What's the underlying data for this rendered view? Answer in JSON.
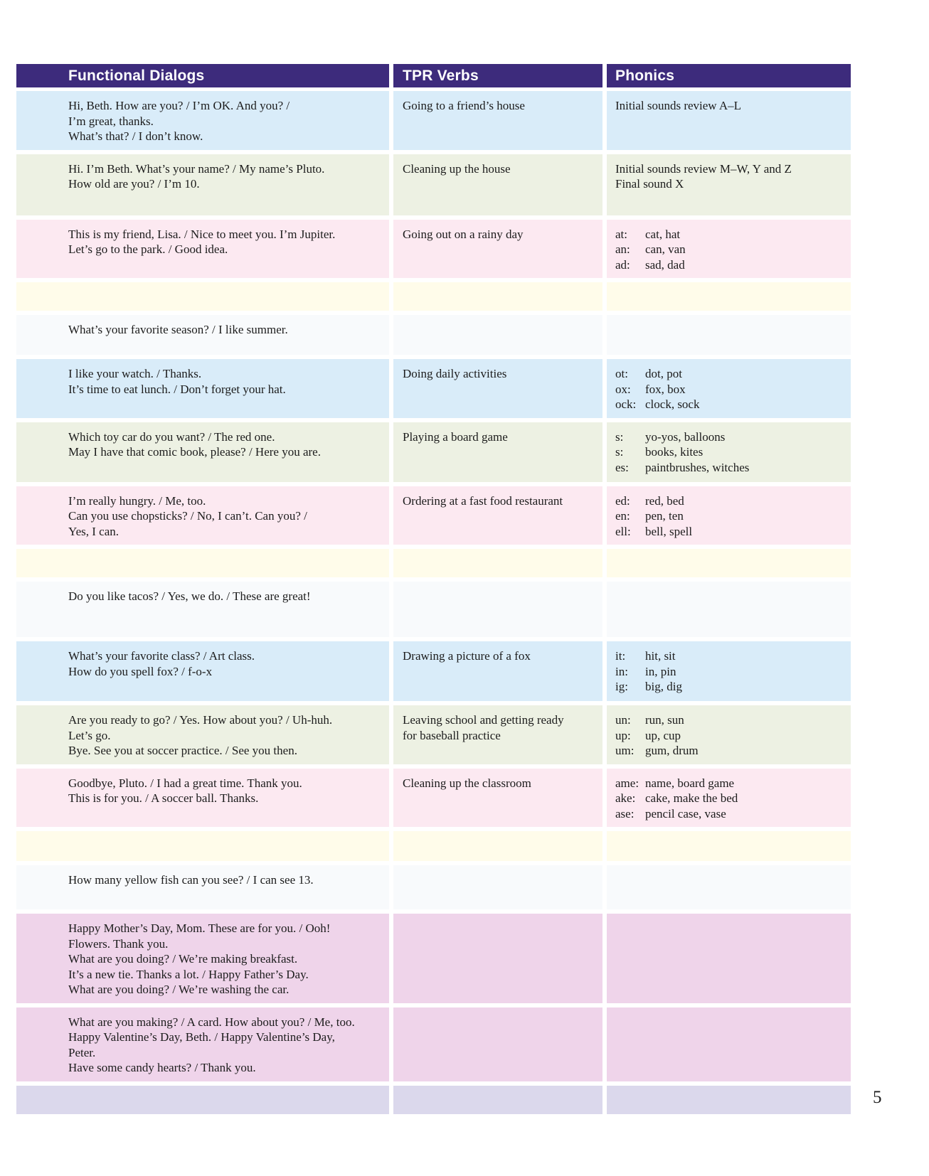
{
  "page": {
    "number": "5"
  },
  "colors": {
    "header_bg": "#3d2b7c",
    "header_text": "#ffffff",
    "body_text": "#1c1c1c",
    "blue": "#d9ecf9",
    "green": "#edf1e3",
    "pink": "#fce9f1",
    "yellow": "#fffcea",
    "pale": "#f8fafc",
    "purple": "#efd4ea",
    "lavender": "#dbd8ec"
  },
  "table": {
    "columns": [
      {
        "label": "Functional Dialogs"
      },
      {
        "label": "TPR Verbs"
      },
      {
        "label": "Phonics"
      }
    ],
    "rows": [
      {
        "color": "blue",
        "dialog": [
          "Hi, Beth. How are you? / I’m OK. And you? /",
          "I’m great, thanks.",
          "What’s that? / I don’t know."
        ],
        "tpr": [
          "Going to a friend’s house"
        ],
        "phonics_lines": [
          "Initial sounds review A–L"
        ],
        "phonics_pairs": []
      },
      {
        "color": "green",
        "dialog": [
          "Hi. I’m Beth. What’s your name? / My name’s Pluto.",
          "How old are you? / I’m 10."
        ],
        "tpr": [
          "Cleaning up the house"
        ],
        "phonics_lines": [
          "Initial sounds review M–W, Y and Z",
          "Final sound X"
        ],
        "phonics_pairs": []
      },
      {
        "color": "pink",
        "dialog": [
          "This is my friend, Lisa. / Nice to meet you. I’m Jupiter.",
          "Let’s go to the park. / Good idea."
        ],
        "tpr": [
          "Going out on a rainy day"
        ],
        "phonics_lines": [],
        "phonics_pairs": [
          [
            "at:",
            "cat, hat"
          ],
          [
            "an:",
            "can, van"
          ],
          [
            "ad:",
            "sad, dad"
          ]
        ]
      },
      {
        "color": "yellow",
        "dialog": [],
        "tpr": [],
        "phonics_lines": [],
        "phonics_pairs": []
      },
      {
        "color": "pale",
        "dialog": [
          "What’s your favorite season? / I like summer."
        ],
        "tpr": [],
        "phonics_lines": [],
        "phonics_pairs": []
      },
      {
        "color": "blue",
        "dialog": [
          "I like your watch. / Thanks.",
          "It’s time to eat lunch. / Don’t forget your hat."
        ],
        "tpr": [
          "Doing daily activities"
        ],
        "phonics_lines": [],
        "phonics_pairs": [
          [
            "ot:",
            "dot, pot"
          ],
          [
            "ox:",
            "fox, box"
          ],
          [
            "ock:",
            "clock, sock"
          ]
        ]
      },
      {
        "color": "green",
        "dialog": [
          "Which toy car do you want? / The red one.",
          "May I have that comic book, please? / Here you are."
        ],
        "tpr": [
          "Playing a board game"
        ],
        "phonics_lines": [],
        "phonics_pairs": [
          [
            "s:",
            "yo-yos, balloons"
          ],
          [
            "s:",
            "books, kites"
          ],
          [
            "es:",
            "paintbrushes, witches"
          ]
        ]
      },
      {
        "color": "pink",
        "dialog": [
          "I’m really hungry. / Me, too.",
          "Can you use chopsticks? / No, I can’t. Can you? /",
          "Yes, I can."
        ],
        "tpr": [
          "Ordering at a fast food restaurant"
        ],
        "phonics_lines": [],
        "phonics_pairs": [
          [
            "ed:",
            "red, bed"
          ],
          [
            "en:",
            "pen, ten"
          ],
          [
            "ell:",
            "bell, spell"
          ]
        ]
      },
      {
        "color": "yellow",
        "dialog": [],
        "tpr": [],
        "phonics_lines": [],
        "phonics_pairs": []
      },
      {
        "color": "pale",
        "dialog": [
          "Do you like tacos? / Yes, we do. / These are great!"
        ],
        "tpr": [],
        "phonics_lines": [],
        "phonics_pairs": []
      },
      {
        "color": "blue",
        "dialog": [
          "What’s your favorite class? / Art class.",
          "How do you spell fox? / f-o-x"
        ],
        "tpr": [
          "Drawing a picture of a fox"
        ],
        "phonics_lines": [],
        "phonics_pairs": [
          [
            "it:",
            "hit, sit"
          ],
          [
            "in:",
            "in, pin"
          ],
          [
            "ig:",
            "big, dig"
          ]
        ]
      },
      {
        "color": "green",
        "dialog": [
          "Are you ready to go? / Yes. How about you? / Uh-huh.",
          "Let’s go.",
          "Bye. See you at soccer practice. / See you then."
        ],
        "tpr": [
          "Leaving school and getting ready",
          "for baseball practice"
        ],
        "phonics_lines": [],
        "phonics_pairs": [
          [
            "un:",
            "run, sun"
          ],
          [
            "up:",
            "up, cup"
          ],
          [
            "um:",
            "gum, drum"
          ]
        ]
      },
      {
        "color": "pink",
        "dialog": [
          "Goodbye, Pluto. / I had a great time. Thank you.",
          "This is for you. / A soccer ball. Thanks."
        ],
        "tpr": [
          "Cleaning up the classroom"
        ],
        "phonics_lines": [],
        "phonics_pairs": [
          [
            "ame:",
            "name, board game"
          ],
          [
            "ake:",
            "cake, make the bed"
          ],
          [
            "ase:",
            "pencil case, vase"
          ]
        ]
      },
      {
        "color": "yellow",
        "dialog": [],
        "tpr": [],
        "phonics_lines": [],
        "phonics_pairs": []
      },
      {
        "color": "pale",
        "dialog": [
          "How many yellow fish can you see? / I can see 13."
        ],
        "tpr": [],
        "phonics_lines": [],
        "phonics_pairs": []
      },
      {
        "color": "purple",
        "dialog": [
          "Happy Mother’s Day, Mom. These are for you. / Ooh!",
          "Flowers. Thank you.",
          "What are you doing? / We’re making breakfast.",
          "It’s a new tie. Thanks a lot. / Happy Father’s Day.",
          "What are you doing? / We’re washing the car."
        ],
        "tpr": [],
        "phonics_lines": [],
        "phonics_pairs": []
      },
      {
        "color": "purple",
        "dialog": [
          "What are you making? / A card. How about you? / Me, too.",
          "Happy Valentine’s Day, Beth. / Happy Valentine’s Day,",
          "Peter.",
          "Have some candy hearts? / Thank you."
        ],
        "tpr": [],
        "phonics_lines": [],
        "phonics_pairs": []
      },
      {
        "color": "lavender",
        "dialog": [],
        "tpr": [],
        "phonics_lines": [],
        "phonics_pairs": []
      }
    ]
  }
}
